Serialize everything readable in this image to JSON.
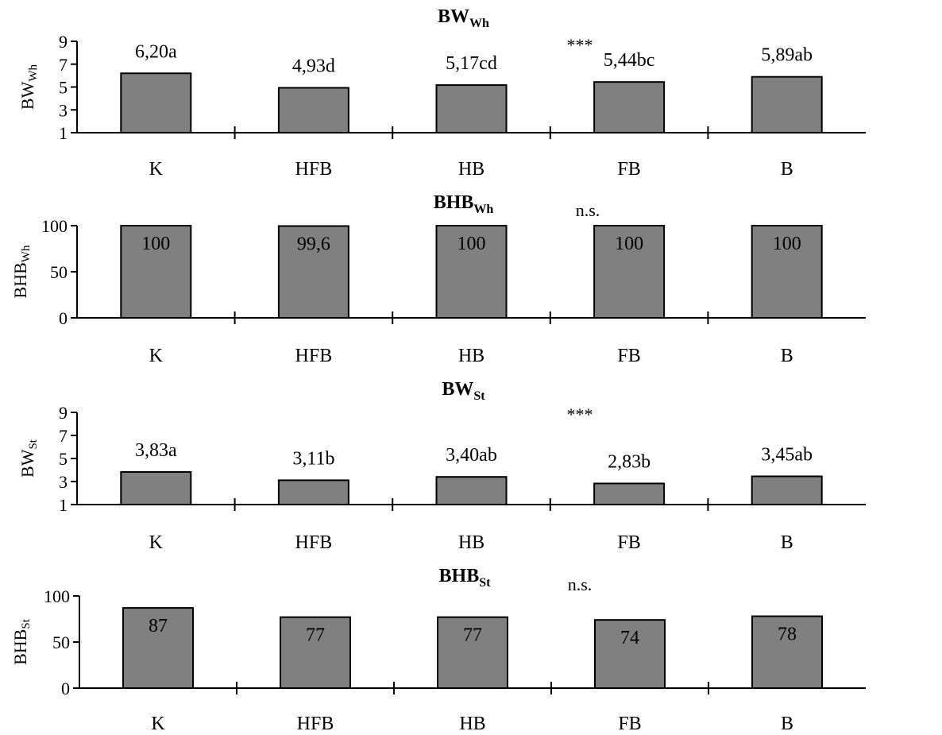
{
  "chart_data": [
    {
      "type": "bar",
      "title": "BW",
      "title_subscript": "Wh",
      "ylabel": "BW",
      "ylabel_subscript": "Wh",
      "significance": "***",
      "categories": [
        "K",
        "HFB",
        "HB",
        "FB",
        "B"
      ],
      "values": [
        6.2,
        4.93,
        5.17,
        5.44,
        5.89
      ],
      "value_labels": [
        "6,20a",
        "4,93d",
        "5,17cd",
        "5,44bc",
        "5,89ab"
      ],
      "label_position": "above",
      "ylim": [
        1,
        9
      ],
      "yticks": [
        1,
        3,
        5,
        7,
        9
      ],
      "grid": false,
      "legend": "none",
      "bar_color": "#808080"
    },
    {
      "type": "bar",
      "title": "BHB",
      "title_subscript": "Wh",
      "ylabel": "BHB",
      "ylabel_subscript": "Wh",
      "significance": "n.s.",
      "categories": [
        "K",
        "HFB",
        "HB",
        "FB",
        "B"
      ],
      "values": [
        100,
        99.6,
        100,
        100,
        100
      ],
      "value_labels": [
        "100",
        "99,6",
        "100",
        "100",
        "100"
      ],
      "label_position": "inside",
      "ylim": [
        0,
        100
      ],
      "yticks": [
        0,
        50,
        100
      ],
      "grid": false,
      "legend": "none",
      "bar_color": "#808080"
    },
    {
      "type": "bar",
      "title": "BW",
      "title_subscript": "St",
      "ylabel": "BW",
      "ylabel_subscript": "St",
      "significance": "***",
      "categories": [
        "K",
        "HFB",
        "HB",
        "FB",
        "B"
      ],
      "values": [
        3.83,
        3.11,
        3.4,
        2.83,
        3.45
      ],
      "value_labels": [
        "3,83a",
        "3,11b",
        "3,40ab",
        "2,83b",
        "3,45ab"
      ],
      "label_position": "above",
      "ylim": [
        1,
        9
      ],
      "yticks": [
        1,
        3,
        5,
        7,
        9
      ],
      "grid": false,
      "legend": "none",
      "bar_color": "#808080"
    },
    {
      "type": "bar",
      "title": "BHB",
      "title_subscript": "St",
      "ylabel": "BHB",
      "ylabel_subscript": "St",
      "significance": "n.s.",
      "categories": [
        "K",
        "HFB",
        "HB",
        "FB",
        "B"
      ],
      "values": [
        87,
        77,
        77,
        74,
        78
      ],
      "value_labels": [
        "87",
        "77",
        "77",
        "74",
        "78"
      ],
      "label_position": "inside",
      "ylim": [
        0,
        100
      ],
      "yticks": [
        0,
        50,
        100
      ],
      "grid": false,
      "legend": "none",
      "bar_color": "#808080"
    }
  ]
}
